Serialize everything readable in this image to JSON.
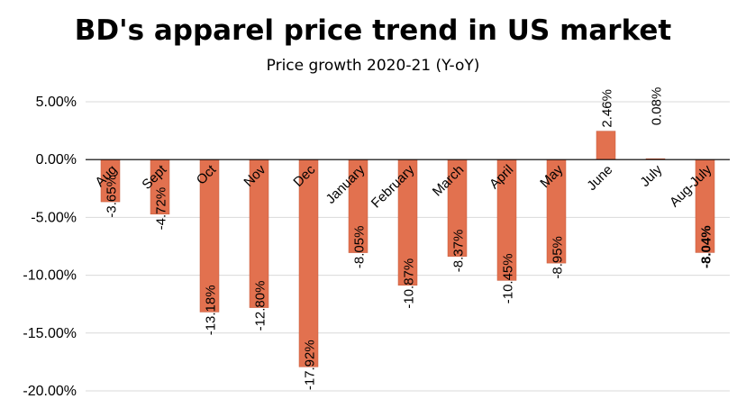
{
  "chart_data": {
    "type": "bar",
    "title": "BD's apparel price trend in US market",
    "subtitle": "Price growth 2020-21 (Y-oY)",
    "categories": [
      "Aug",
      "Sept",
      "Oct",
      "Nov",
      "Dec",
      "January",
      "February",
      "March",
      "April",
      "May",
      "June",
      "July",
      "Aug-July"
    ],
    "values": [
      -3.65,
      -4.72,
      -13.18,
      -12.8,
      -17.92,
      -8.05,
      -10.87,
      -8.37,
      -10.45,
      -8.95,
      2.46,
      0.08,
      -8.04
    ],
    "data_labels": [
      "-3.65%",
      "-4.72%",
      "-13.18%",
      "-12.80%",
      "-17.92%",
      "-8.05%",
      "-10.87%",
      "-8.37%",
      "-10.45%",
      "-8.95%",
      "2.46%",
      "0.08%",
      "-8.04%"
    ],
    "bold_labels": [
      false,
      false,
      false,
      false,
      false,
      false,
      false,
      false,
      false,
      false,
      false,
      false,
      true
    ],
    "ylim": [
      -20,
      5
    ],
    "yticks": [
      5,
      0,
      -5,
      -10,
      -15,
      -20
    ],
    "ytick_labels": [
      "5.00%",
      "0.00%",
      "-5.00%",
      "-10.00%",
      "-15.00%",
      "-20.00%"
    ],
    "grid": true,
    "bar_color": "#e2714f",
    "xlabel": "",
    "ylabel": ""
  }
}
